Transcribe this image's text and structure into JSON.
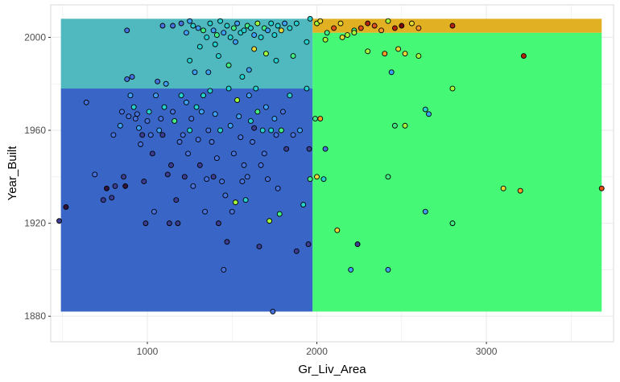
{
  "chart_data": {
    "type": "scatter",
    "title": "",
    "xlabel": "Gr_Liv_Area",
    "ylabel": "Year_Built",
    "xlim": [
      430,
      3750
    ],
    "ylim": [
      1869,
      2014
    ],
    "x_ticks": [
      1000,
      2000,
      3000
    ],
    "y_ticks": [
      1880,
      1920,
      1960,
      2000
    ],
    "x_tick_labels": [
      "1000",
      "2000",
      "3000"
    ],
    "y_tick_labels": [
      "1880",
      "1920",
      "1960",
      "2000"
    ],
    "grid": true,
    "legend": "none",
    "background": "#ffffff",
    "grid_color": "#ebebeb",
    "regions": [
      {
        "x": [
          490,
          1975
        ],
        "y": [
          1882,
          1978
        ],
        "color": "#3966C6"
      },
      {
        "x": [
          490,
          1975
        ],
        "y": [
          1978,
          2008
        ],
        "color": "#4FB9BF"
      },
      {
        "x": [
          1975,
          3680
        ],
        "y": [
          1882,
          2002
        ],
        "color": "#45F876"
      },
      {
        "x": [
          1975,
          3680
        ],
        "y": [
          2002,
          2008
        ],
        "color": "#E2B123"
      }
    ],
    "point_colors": [
      "#30123B",
      "#3B3D93",
      "#4572DD",
      "#3EA0F7",
      "#26D0CF",
      "#44EE85",
      "#A2FC3C",
      "#E8D838",
      "#F99A2B",
      "#E0501A",
      "#B2230D",
      "#7A0403"
    ],
    "points": [
      [
        480,
        1921,
        1
      ],
      [
        520,
        1927,
        0
      ],
      [
        640,
        1972,
        2
      ],
      [
        690,
        1941,
        2
      ],
      [
        740,
        1930,
        1
      ],
      [
        760,
        1935,
        0
      ],
      [
        790,
        1931,
        1
      ],
      [
        800,
        1958,
        2
      ],
      [
        810,
        1936,
        1
      ],
      [
        840,
        1962,
        3
      ],
      [
        850,
        1968,
        2
      ],
      [
        860,
        1940,
        1
      ],
      [
        870,
        1936,
        0
      ],
      [
        880,
        2003,
        2
      ],
      [
        880,
        1982,
        2
      ],
      [
        890,
        1966,
        2
      ],
      [
        900,
        1975,
        3
      ],
      [
        910,
        1983,
        2
      ],
      [
        920,
        1970,
        4
      ],
      [
        930,
        1965,
        2
      ],
      [
        940,
        1967,
        2
      ],
      [
        950,
        1961,
        3
      ],
      [
        960,
        1954,
        2
      ],
      [
        970,
        1958,
        1
      ],
      [
        980,
        1938,
        1
      ],
      [
        990,
        1920,
        1
      ],
      [
        1000,
        1964,
        2
      ],
      [
        1010,
        1968,
        4
      ],
      [
        1020,
        1958,
        2
      ],
      [
        1030,
        1950,
        1
      ],
      [
        1040,
        1925,
        2
      ],
      [
        1050,
        1975,
        3
      ],
      [
        1060,
        1981,
        2
      ],
      [
        1070,
        1960,
        3
      ],
      [
        1080,
        1965,
        2
      ],
      [
        1090,
        1958,
        1
      ],
      [
        1100,
        1970,
        4
      ],
      [
        1110,
        1980,
        3
      ],
      [
        1120,
        1941,
        1
      ],
      [
        1130,
        1920,
        1
      ],
      [
        1140,
        1945,
        1
      ],
      [
        1150,
        1968,
        2
      ],
      [
        1160,
        1964,
        5
      ],
      [
        1170,
        1930,
        1
      ],
      [
        1180,
        1920,
        1
      ],
      [
        1190,
        1955,
        2
      ],
      [
        1200,
        1975,
        4
      ],
      [
        1210,
        1958,
        2
      ],
      [
        1220,
        1940,
        1
      ],
      [
        1230,
        1972,
        3
      ],
      [
        1240,
        1950,
        2
      ],
      [
        1250,
        1960,
        4
      ],
      [
        1260,
        1965,
        2
      ],
      [
        1270,
        1936,
        2
      ],
      [
        1280,
        1985,
        3
      ],
      [
        1290,
        1970,
        4
      ],
      [
        1300,
        1956,
        2
      ],
      [
        1310,
        1945,
        1
      ],
      [
        1320,
        1968,
        3
      ],
      [
        1330,
        1975,
        4
      ],
      [
        1340,
        1925,
        2
      ],
      [
        1350,
        1939,
        2
      ],
      [
        1360,
        1960,
        2
      ],
      [
        1370,
        1977,
        4
      ],
      [
        1380,
        1955,
        2
      ],
      [
        1390,
        1940,
        1
      ],
      [
        1400,
        1967,
        3
      ],
      [
        1410,
        1948,
        2
      ],
      [
        1420,
        1920,
        1
      ],
      [
        1430,
        1960,
        4
      ],
      [
        1440,
        1938,
        2
      ],
      [
        1450,
        1900,
        2
      ],
      [
        1460,
        1932,
        2
      ],
      [
        1470,
        1912,
        1
      ],
      [
        1480,
        1978,
        4
      ],
      [
        1490,
        1962,
        3
      ],
      [
        1500,
        1925,
        2
      ],
      [
        1510,
        1950,
        2
      ],
      [
        1520,
        1929,
        6
      ],
      [
        1530,
        1973,
        6
      ],
      [
        1540,
        1966,
        3
      ],
      [
        1550,
        1957,
        2
      ],
      [
        1560,
        1938,
        2
      ],
      [
        1570,
        1945,
        2
      ],
      [
        1580,
        1930,
        4
      ],
      [
        1590,
        1940,
        2
      ],
      [
        1600,
        1975,
        3
      ],
      [
        1610,
        1964,
        4
      ],
      [
        1620,
        1955,
        2
      ],
      [
        1630,
        1961,
        1
      ],
      [
        1640,
        1978,
        4
      ],
      [
        1650,
        1968,
        5
      ],
      [
        1660,
        1910,
        1
      ],
      [
        1670,
        1945,
        2
      ],
      [
        1680,
        1960,
        4
      ],
      [
        1690,
        1950,
        2
      ],
      [
        1700,
        1970,
        3
      ],
      [
        1710,
        1939,
        2
      ],
      [
        1720,
        1921,
        6
      ],
      [
        1730,
        1960,
        4
      ],
      [
        1740,
        1882,
        2
      ],
      [
        1750,
        1965,
        3
      ],
      [
        1760,
        1958,
        2
      ],
      [
        1770,
        1935,
        2
      ],
      [
        1780,
        1924,
        5
      ],
      [
        1790,
        1960,
        5
      ],
      [
        1800,
        1968,
        2
      ],
      [
        1820,
        1952,
        1
      ],
      [
        1840,
        1975,
        4
      ],
      [
        1860,
        1958,
        2
      ],
      [
        1880,
        1908,
        1
      ],
      [
        1900,
        1960,
        3
      ],
      [
        1920,
        1928,
        4
      ],
      [
        1940,
        1978,
        4
      ],
      [
        1950,
        1911,
        1
      ],
      [
        1955,
        1952,
        1
      ],
      [
        1090,
        2005,
        2
      ],
      [
        1150,
        2005,
        2
      ],
      [
        1200,
        2006,
        2
      ],
      [
        1230,
        2002,
        3
      ],
      [
        1250,
        2007,
        3
      ],
      [
        1270,
        2005,
        4
      ],
      [
        1300,
        2004,
        3
      ],
      [
        1330,
        2003,
        5
      ],
      [
        1350,
        2000,
        4
      ],
      [
        1370,
        2006,
        4
      ],
      [
        1390,
        2003,
        3
      ],
      [
        1410,
        2001,
        5
      ],
      [
        1430,
        2007,
        4
      ],
      [
        1450,
        2002,
        3
      ],
      [
        1470,
        2005,
        4
      ],
      [
        1490,
        2000,
        4
      ],
      [
        1510,
        2004,
        5
      ],
      [
        1530,
        2006,
        3
      ],
      [
        1550,
        2002,
        4
      ],
      [
        1570,
        2003,
        4
      ],
      [
        1590,
        2005,
        5
      ],
      [
        1610,
        2004,
        4
      ],
      [
        1630,
        2001,
        3
      ],
      [
        1650,
        2006,
        6
      ],
      [
        1670,
        2000,
        4
      ],
      [
        1690,
        2004,
        5
      ],
      [
        1710,
        2003,
        3
      ],
      [
        1730,
        2006,
        4
      ],
      [
        1750,
        2001,
        4
      ],
      [
        1770,
        2005,
        4
      ],
      [
        1790,
        2003,
        7
      ],
      [
        1810,
        2006,
        3
      ],
      [
        1840,
        2004,
        4
      ],
      [
        1880,
        2006,
        4
      ],
      [
        1250,
        1990,
        4
      ],
      [
        1310,
        1996,
        4
      ],
      [
        1360,
        1985,
        3
      ],
      [
        1420,
        1992,
        4
      ],
      [
        1480,
        1988,
        5
      ],
      [
        1560,
        1983,
        4
      ],
      [
        1630,
        1995,
        7
      ],
      [
        1700,
        1993,
        6
      ],
      [
        1760,
        1990,
        4
      ],
      [
        1860,
        1992,
        5
      ],
      [
        1940,
        1998,
        4
      ],
      [
        1960,
        2008,
        4
      ],
      [
        1400,
        1997,
        4
      ],
      [
        1520,
        1998,
        3
      ],
      [
        1600,
        1986,
        3
      ],
      [
        2000,
        2006,
        6
      ],
      [
        2020,
        2007,
        7
      ],
      [
        2060,
        2002,
        5
      ],
      [
        2100,
        2004,
        9
      ],
      [
        2140,
        2006,
        7
      ],
      [
        2180,
        2001,
        6
      ],
      [
        2220,
        2003,
        5
      ],
      [
        2260,
        2004,
        9
      ],
      [
        2300,
        2006,
        10
      ],
      [
        2340,
        2005,
        9
      ],
      [
        2380,
        2003,
        8
      ],
      [
        2420,
        2007,
        6
      ],
      [
        2460,
        2004,
        10
      ],
      [
        2500,
        2005,
        11
      ],
      [
        2560,
        2006,
        7
      ],
      [
        2600,
        2004,
        8
      ],
      [
        2800,
        2005,
        10
      ],
      [
        2050,
        1999,
        6
      ],
      [
        2150,
        2000,
        7
      ],
      [
        2220,
        2002,
        6
      ],
      [
        2300,
        1994,
        6
      ],
      [
        2400,
        1993,
        8
      ],
      [
        2480,
        1995,
        7
      ],
      [
        2520,
        1993,
        7
      ],
      [
        2600,
        1992,
        6
      ],
      [
        3220,
        1992,
        10
      ],
      [
        2440,
        1985,
        3
      ],
      [
        1990,
        1965,
        5
      ],
      [
        2020,
        1965,
        8
      ],
      [
        2050,
        1952,
        2
      ],
      [
        2000,
        1940,
        7
      ],
      [
        2040,
        1939,
        4
      ],
      [
        2120,
        1917,
        7
      ],
      [
        2240,
        1911,
        1
      ],
      [
        2200,
        1900,
        3
      ],
      [
        2420,
        1900,
        3
      ],
      [
        2460,
        1962,
        5
      ],
      [
        2520,
        1962,
        6
      ],
      [
        2640,
        1969,
        4
      ],
      [
        2660,
        1967,
        3
      ],
      [
        2800,
        1978,
        6
      ],
      [
        2420,
        1940,
        5
      ],
      [
        3100,
        1935,
        7
      ],
      [
        3200,
        1934,
        8
      ],
      [
        3680,
        1935,
        9
      ],
      [
        2640,
        1925,
        3
      ],
      [
        2800,
        1920,
        5
      ],
      [
        1960,
        1939,
        5
      ]
    ]
  }
}
